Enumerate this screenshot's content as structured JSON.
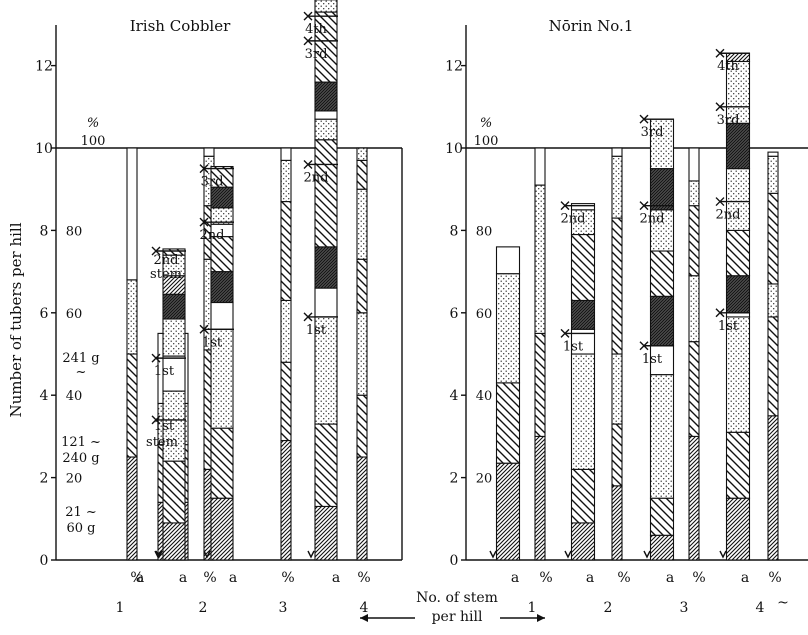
{
  "chart_data": {
    "type": "bar",
    "y_axis_label": "Number of tubers per hill",
    "y_ticks": [
      "0",
      "2",
      "4",
      "6",
      "8",
      "10",
      "12"
    ],
    "pct_ticks": [
      "20",
      "40",
      "60",
      "80"
    ],
    "pct_unit": "%",
    "pct_top": "100",
    "bottom_label": {
      "line1": "No. of stem",
      "line2": "per hill"
    },
    "bar_labels": {
      "count": "a",
      "percent": "%"
    },
    "legend_classes": [
      {
        "label_lines": [
          "241 g",
          "~"
        ],
        "pattern": "blank"
      },
      {
        "label_lines": [
          "121 ~",
          "240 g"
        ],
        "pattern": "dots"
      },
      {
        "label_lines": [],
        "pattern": "hatch-back"
      },
      {
        "label_lines": [
          "21 ~",
          "60 g"
        ],
        "pattern": "hatch-fwd"
      }
    ],
    "panels": [
      {
        "title": "Irish Cobbler",
        "groups": [
          {
            "stem": "1",
            "a": [
              {
                "p": "hf",
                "v": 1.4
              },
              {
                "p": "hb",
                "v": 1.4
              },
              {
                "p": "dt",
                "v": 1.0
              },
              {
                "p": "bl",
                "v": 1.7
              }
            ],
            "pct": [
              {
                "p": "hf",
                "v": 25
              },
              {
                "p": "hb",
                "v": 25
              },
              {
                "p": "dt",
                "v": 18
              },
              {
                "p": "bl",
                "v": 32
              }
            ]
          },
          {
            "stem": "2",
            "a": [
              {
                "p": "hf",
                "v": 0.9
              },
              {
                "p": "hb",
                "v": 1.5
              },
              {
                "p": "dt",
                "v": 1.7
              },
              {
                "p": "bl",
                "v": 0.85
              },
              {
                "p": "dt",
                "v": 0.9
              },
              {
                "p": "hd",
                "v": 0.6
              },
              {
                "p": "hf",
                "v": 0.45
              },
              {
                "p": "dt",
                "v": 0.5
              },
              {
                "p": "hb",
                "v": 0.15
              }
            ],
            "pct": [
              {
                "p": "hf",
                "v": 22
              },
              {
                "p": "hb",
                "v": 29
              },
              {
                "p": "dt",
                "v": 22
              },
              {
                "p": "hb",
                "v": 13
              },
              {
                "p": "dt",
                "v": 12
              },
              {
                "p": "bl",
                "v": 2
              }
            ]
          },
          {
            "stem": "3",
            "a": [
              {
                "p": "hf",
                "v": 1.5
              },
              {
                "p": "hb",
                "v": 1.7
              },
              {
                "p": "dt",
                "v": 2.4
              },
              {
                "p": "bl",
                "v": 0.65
              },
              {
                "p": "hd",
                "v": 0.75
              },
              {
                "p": "hb",
                "v": 0.85
              },
              {
                "p": "bl",
                "v": 0.3
              },
              {
                "p": "dt",
                "v": 0.4
              },
              {
                "p": "hd",
                "v": 0.5
              },
              {
                "p": "hb",
                "v": 0.5
              }
            ],
            "pct": [
              {
                "p": "hf",
                "v": 29
              },
              {
                "p": "hb",
                "v": 19
              },
              {
                "p": "dt",
                "v": 15
              },
              {
                "p": "hb",
                "v": 24
              },
              {
                "p": "dt",
                "v": 10
              },
              {
                "p": "bl",
                "v": 3
              }
            ]
          },
          {
            "stem": "4",
            "a": [
              {
                "p": "hf",
                "v": 1.3
              },
              {
                "p": "hb",
                "v": 2.0
              },
              {
                "p": "dt",
                "v": 2.6
              },
              {
                "p": "bl",
                "v": 0.7
              },
              {
                "p": "hd",
                "v": 1.0
              },
              {
                "p": "hb",
                "v": 2.6
              },
              {
                "p": "dt",
                "v": 0.5
              },
              {
                "p": "bl",
                "v": 0.2
              },
              {
                "p": "hd",
                "v": 0.7
              },
              {
                "p": "hb",
                "v": 1.7
              },
              {
                "p": "dt",
                "v": 0.3
              },
              {
                "p": "hf",
                "v": 0.3
              },
              {
                "p": "dt",
                "v": 0.3
              }
            ],
            "pct": [
              {
                "p": "hf",
                "v": 25
              },
              {
                "p": "hb",
                "v": 15
              },
              {
                "p": "dt",
                "v": 20
              },
              {
                "p": "hb",
                "v": 13
              },
              {
                "p": "dt",
                "v": 17
              },
              {
                "p": "hb",
                "v": 7
              },
              {
                "p": "dt",
                "v": 3
              }
            ]
          }
        ],
        "markers": [
          {
            "text": "1st",
            "g": 1,
            "y": 4.9
          },
          {
            "text": "2nd",
            "g": 1,
            "y": 7.5,
            "line2": "stem"
          },
          {
            "text": "1st",
            "g": 1,
            "y": 3.4,
            "stem_line": "stem"
          },
          {
            "text": "1st",
            "g": 2,
            "y": 5.6
          },
          {
            "text": "2nd",
            "g": 2,
            "y": 8.2
          },
          {
            "text": "3rd",
            "g": 2,
            "y": 9.5
          },
          {
            "text": "1st",
            "g": 3,
            "y": 5.9
          },
          {
            "text": "2nd",
            "g": 3,
            "y": 9.6
          },
          {
            "text": "3rd",
            "g": 3,
            "y": 12.6
          },
          {
            "text": "4th",
            "g": 3,
            "y": 13.2
          }
        ]
      },
      {
        "title": "Nōrin No.1",
        "groups": [
          {
            "stem": "1",
            "a": [
              {
                "p": "hf",
                "v": 2.35
              },
              {
                "p": "hb",
                "v": 1.95
              },
              {
                "p": "dt",
                "v": 2.65
              },
              {
                "p": "bl",
                "v": 0.65
              }
            ],
            "pct": [
              {
                "p": "hf",
                "v": 30
              },
              {
                "p": "hb",
                "v": 25
              },
              {
                "p": "dt",
                "v": 36
              },
              {
                "p": "bl",
                "v": 9
              }
            ]
          },
          {
            "stem": "2",
            "a": [
              {
                "p": "hf",
                "v": 0.9
              },
              {
                "p": "hb",
                "v": 1.3
              },
              {
                "p": "dt",
                "v": 2.8
              },
              {
                "p": "bl",
                "v": 0.6
              },
              {
                "p": "hd",
                "v": 0.7
              },
              {
                "p": "hb",
                "v": 1.6
              },
              {
                "p": "dt",
                "v": 0.6
              },
              {
                "p": "bl",
                "v": 0.15
              }
            ],
            "pct": [
              {
                "p": "hf",
                "v": 18
              },
              {
                "p": "hb",
                "v": 15
              },
              {
                "p": "dt",
                "v": 17
              },
              {
                "p": "hb",
                "v": 33
              },
              {
                "p": "dt",
                "v": 15
              },
              {
                "p": "bl",
                "v": 2
              }
            ]
          },
          {
            "stem": "3",
            "a": [
              {
                "p": "hf",
                "v": 0.6
              },
              {
                "p": "hb",
                "v": 0.9
              },
              {
                "p": "dt",
                "v": 3.0
              },
              {
                "p": "bl",
                "v": 0.7
              },
              {
                "p": "hd",
                "v": 1.2
              },
              {
                "p": "hb",
                "v": 1.1
              },
              {
                "p": "dt",
                "v": 1.0
              },
              {
                "p": "hd",
                "v": 1.0
              },
              {
                "p": "dt",
                "v": 1.2
              }
            ],
            "pct": [
              {
                "p": "hf",
                "v": 30
              },
              {
                "p": "hb",
                "v": 23
              },
              {
                "p": "dt",
                "v": 16
              },
              {
                "p": "hb",
                "v": 17
              },
              {
                "p": "dt",
                "v": 6
              },
              {
                "p": "bl",
                "v": 8
              }
            ]
          },
          {
            "stem": "4",
            "a": [
              {
                "p": "hf",
                "v": 1.5
              },
              {
                "p": "hb",
                "v": 1.6
              },
              {
                "p": "dt",
                "v": 2.8
              },
              {
                "p": "bl",
                "v": 0.1
              },
              {
                "p": "hd",
                "v": 0.9
              },
              {
                "p": "hb",
                "v": 1.1
              },
              {
                "p": "dt",
                "v": 1.5
              },
              {
                "p": "hd",
                "v": 1.1
              },
              {
                "p": "dt",
                "v": 1.5
              },
              {
                "p": "hf",
                "v": 0.2
              }
            ],
            "pct": [
              {
                "p": "hf",
                "v": 35
              },
              {
                "p": "hb",
                "v": 24
              },
              {
                "p": "dt",
                "v": 8
              },
              {
                "p": "hb",
                "v": 22
              },
              {
                "p": "dt",
                "v": 9
              },
              {
                "p": "bl",
                "v": 1
              }
            ]
          }
        ],
        "markers": [
          {
            "text": "1st",
            "g": 1,
            "y": 5.5
          },
          {
            "text": "2nd",
            "g": 1,
            "y": 8.6
          },
          {
            "text": "1st",
            "g": 2,
            "y": 5.2
          },
          {
            "text": "2nd",
            "g": 2,
            "y": 8.6
          },
          {
            "text": "3rd",
            "g": 2,
            "y": 10.7
          },
          {
            "text": "1st",
            "g": 3,
            "y": 6.0
          },
          {
            "text": "2nd",
            "g": 3,
            "y": 8.7
          },
          {
            "text": "3rd",
            "g": 3,
            "y": 11.0
          },
          {
            "text": "4th",
            "g": 3,
            "y": 12.3
          }
        ]
      }
    ]
  }
}
